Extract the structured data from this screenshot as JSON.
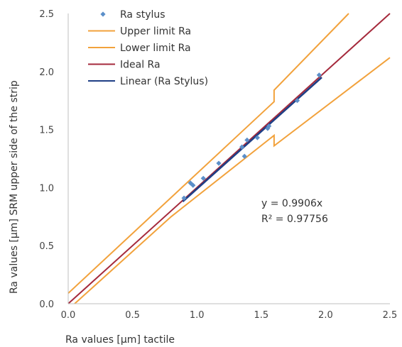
{
  "chart_data": {
    "type": "scatter",
    "xlabel": "Ra values [µm] tactile",
    "ylabel": "Ra values [µm] SRM upper side of the strip",
    "xlim": [
      0.0,
      2.5
    ],
    "ylim": [
      0.0,
      2.5
    ],
    "xticks": [
      "0.0",
      "0.5",
      "1.0",
      "1.5",
      "2.0",
      "2.5"
    ],
    "yticks": [
      "0.0",
      "0.5",
      "1.0",
      "1.5",
      "2.0",
      "2.5"
    ],
    "grid": false,
    "legend_position": "top-left",
    "annotations": [
      "y = 0.9906x",
      "R² = 0.97756"
    ],
    "series": [
      {
        "name": "Ra stylus",
        "kind": "scatter",
        "marker": "diamond",
        "color": "#5b8fc9",
        "x": [
          0.9,
          0.95,
          0.97,
          1.05,
          1.17,
          1.35,
          1.37,
          1.39,
          1.47,
          1.55,
          1.56,
          1.78,
          1.95
        ],
        "y": [
          0.91,
          1.04,
          1.02,
          1.08,
          1.21,
          1.35,
          1.27,
          1.41,
          1.43,
          1.51,
          1.53,
          1.75,
          1.97
        ]
      },
      {
        "name": "Upper limit Ra",
        "kind": "line",
        "color": "#f2a23c",
        "x": [
          0.0,
          1.6,
          1.6,
          2.18
        ],
        "y": [
          0.09,
          1.74,
          1.84,
          2.5
        ]
      },
      {
        "name": "Lower limit Ra",
        "kind": "line",
        "color": "#f2a23c",
        "x": [
          0.05,
          0.8,
          1.6,
          1.6,
          2.5
        ],
        "y": [
          0.0,
          0.75,
          1.45,
          1.36,
          2.12
        ]
      },
      {
        "name": "Ideal Ra",
        "kind": "line",
        "color": "#a52a3c",
        "x": [
          0.0,
          2.5
        ],
        "y": [
          0.0,
          2.5
        ]
      },
      {
        "name": "Linear (Ra Stylus)",
        "kind": "line",
        "color": "#1f3f86",
        "x": [
          0.89,
          1.97
        ],
        "y": [
          0.88,
          1.95
        ]
      }
    ]
  }
}
